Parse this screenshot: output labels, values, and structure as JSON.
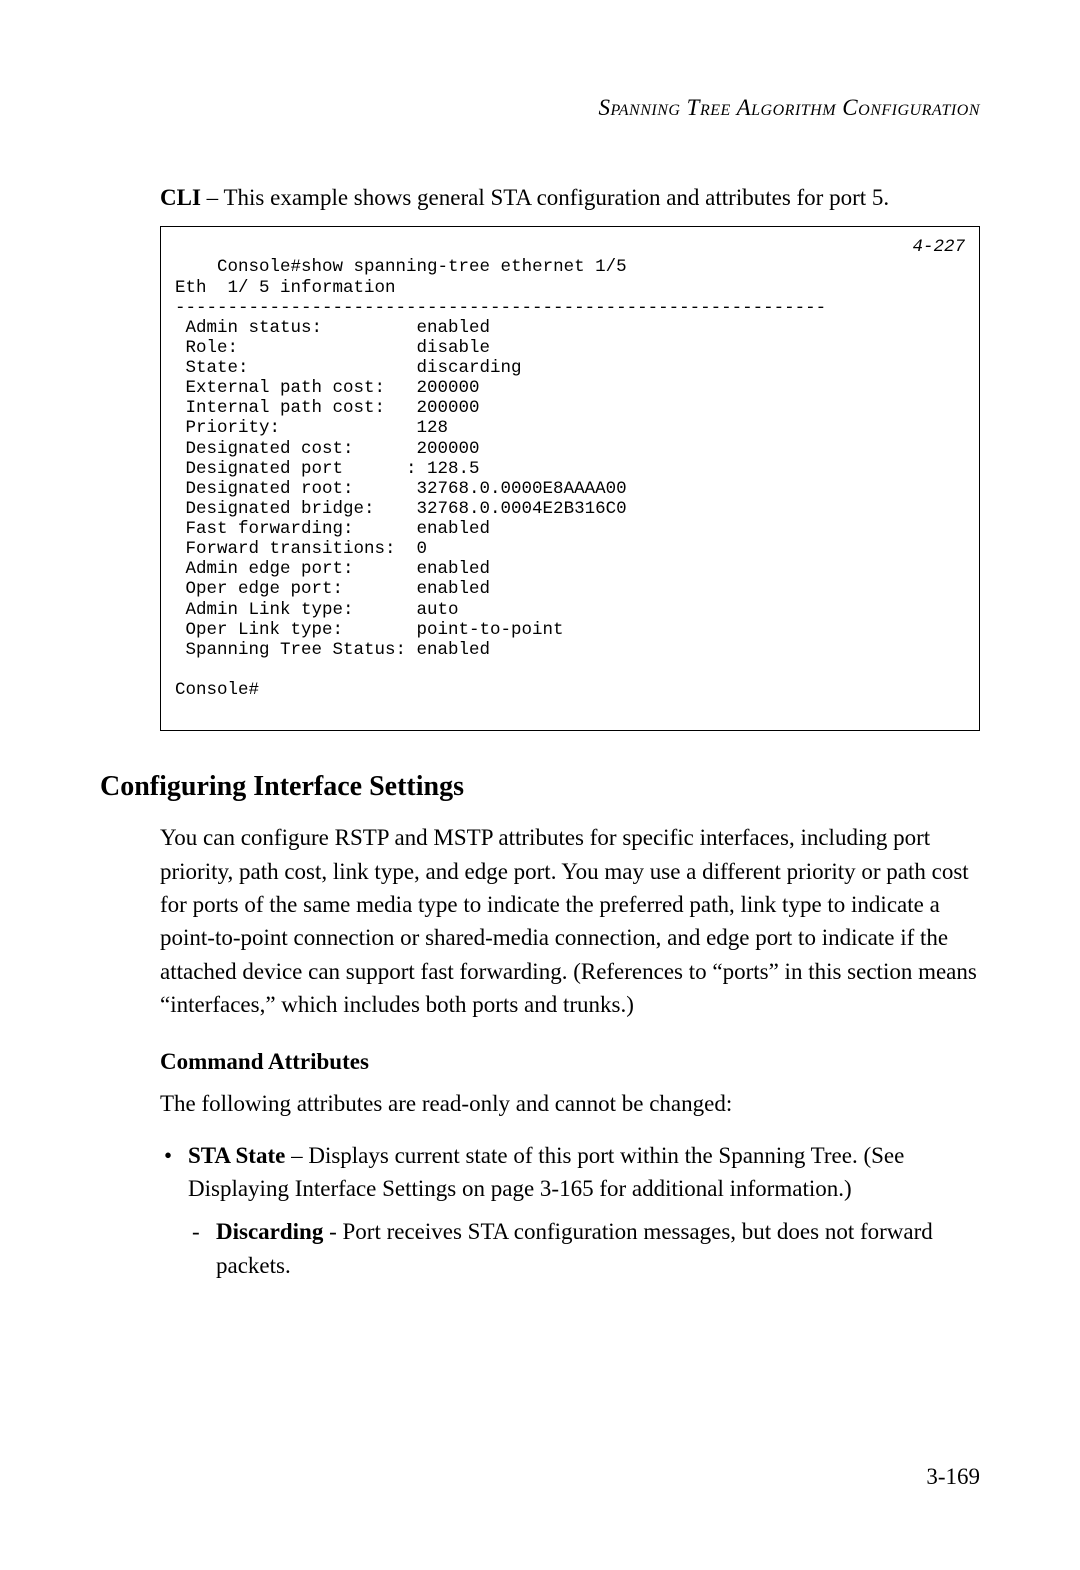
{
  "header": {
    "running_title": "Spanning Tree Algorithm Configuration"
  },
  "intro": {
    "cli_label": "CLI",
    "cli_text": " – This example shows general STA configuration and attributes for port 5."
  },
  "console": {
    "ref": "4-227",
    "text": "Console#show spanning-tree ethernet 1/5\nEth  1/ 5 information\n--------------------------------------------------------------\n Admin status:         enabled\n Role:                 disable\n State:                discarding\n External path cost:   200000\n Internal path cost:   200000\n Priority:             128\n Designated cost:      200000\n Designated port      : 128.5\n Designated root:      32768.0.0000E8AAAA00\n Designated bridge:    32768.0.0004E2B316C0\n Fast forwarding:      enabled\n Forward transitions:  0\n Admin edge port:      enabled\n Oper edge port:       enabled\n Admin Link type:      auto\n Oper Link type:       point-to-point\n Spanning Tree Status: enabled\n\nConsole#"
  },
  "section": {
    "h2": "Configuring Interface Settings",
    "p1": "You can configure RSTP and MSTP attributes for specific interfaces, including port priority, path cost, link type, and edge port. You may use a different priority or path cost for ports of the same media type to indicate the preferred path, link type to indicate a point-to-point connection or shared-media connection, and edge port to indicate if the attached device can support fast forwarding. (References to “ports” in this section means “interfaces,” which includes both ports and trunks.)",
    "h3": "Command Attributes",
    "p2": "The following attributes are read-only and cannot be changed:",
    "bullet1_label": "STA State",
    "bullet1_text": " – Displays current state of this port within the Spanning Tree. (See Displaying Interface Settings on page 3-165 for additional information.)",
    "sub1_label": "Discarding",
    "sub1_text": " - Port receives STA configuration messages, but does not forward packets."
  },
  "footer": {
    "page_number": "3-169"
  }
}
